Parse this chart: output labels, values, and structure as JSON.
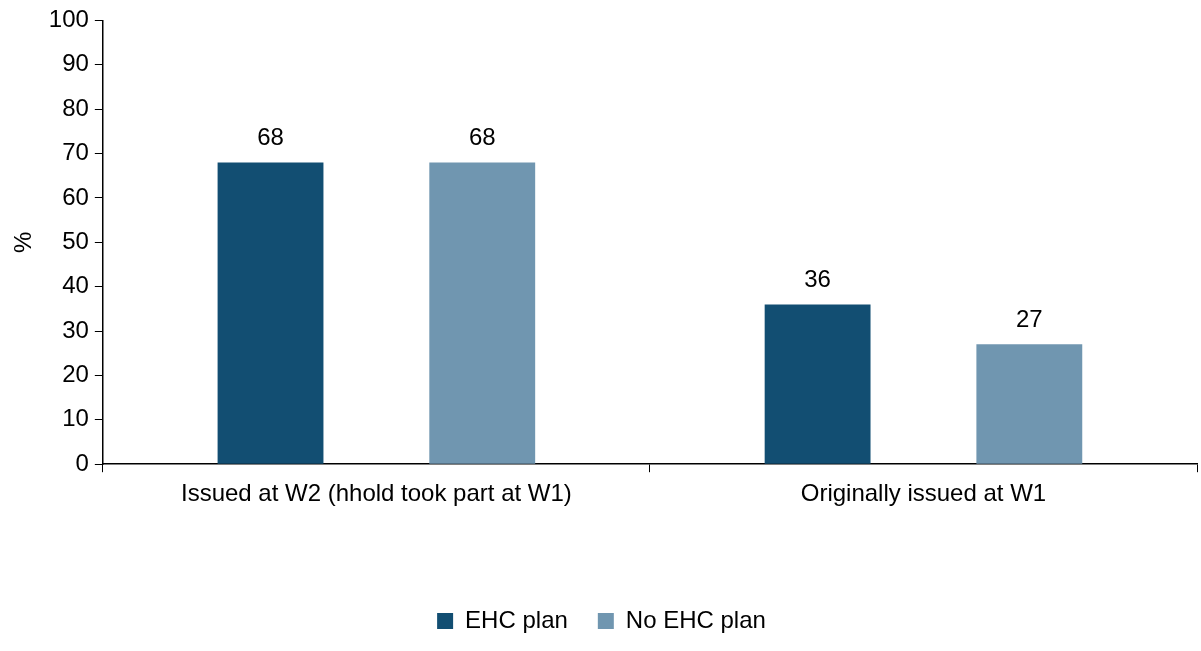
{
  "chart_data": {
    "type": "bar",
    "ylabel": "%",
    "categories": [
      "Issued at W2 (hhold took part at W1)",
      "Originally issued at W1"
    ],
    "series": [
      {
        "name": "EHC plan",
        "color": "#124e72",
        "values": [
          68,
          36
        ]
      },
      {
        "name": "No EHC plan",
        "color": "#7096b0",
        "values": [
          68,
          27
        ]
      }
    ],
    "ylim": [
      0,
      100
    ],
    "yticks": [
      0,
      10,
      20,
      30,
      40,
      50,
      60,
      70,
      80,
      90,
      100
    ],
    "grid": false,
    "legend": "bottom",
    "data_labels": true
  }
}
